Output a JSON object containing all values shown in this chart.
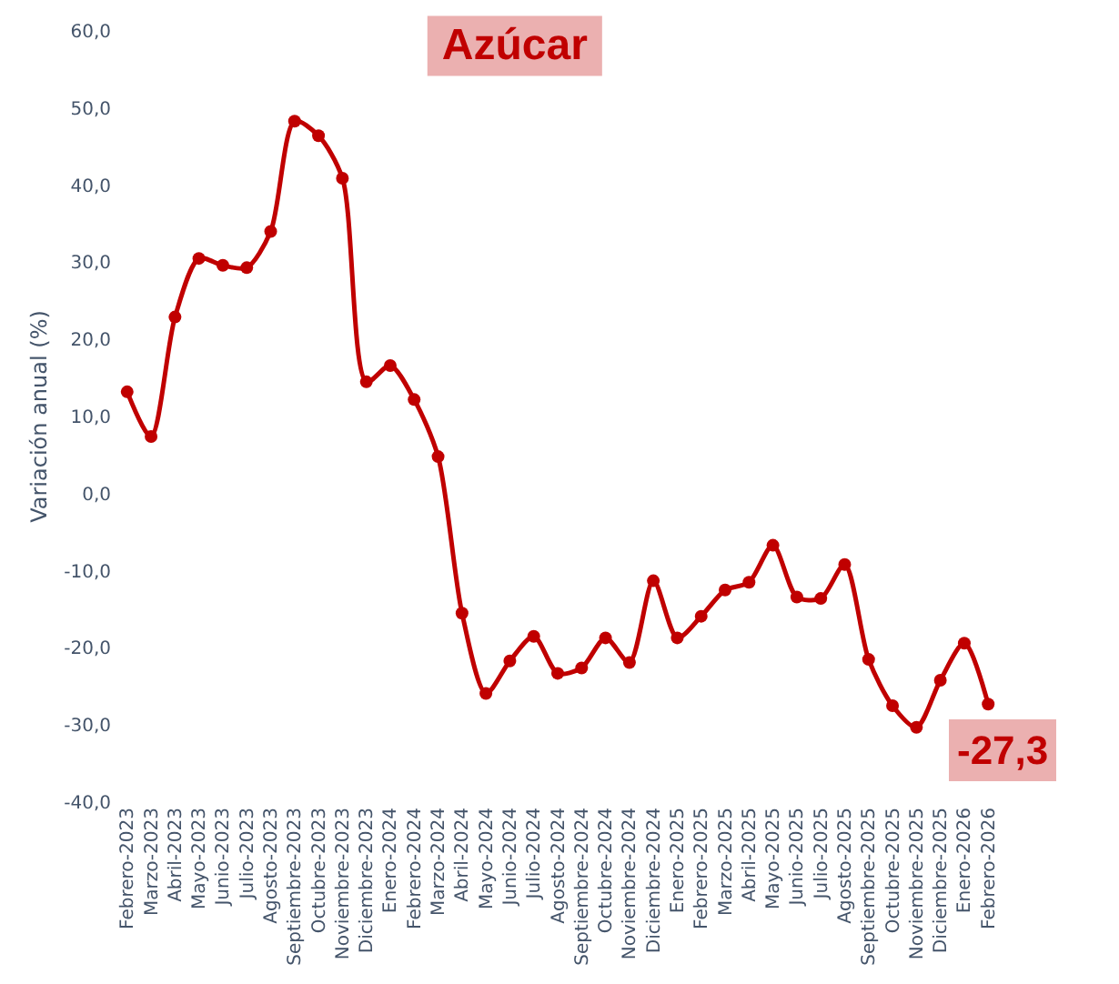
{
  "chart_data": {
    "type": "line",
    "title": "Azúcar",
    "ylabel": "Variación anual (%)",
    "categories": [
      "Febrero-2023",
      "Marzo-2023",
      "Abril-2023",
      "Mayo-2023",
      "Junio-2023",
      "Julio-2023",
      "Agosto-2023",
      "Septiembre-2023",
      "Octubre-2023",
      "Noviembre-2023",
      "Diciembre-2023",
      "Enero-2024",
      "Febrero-2024",
      "Marzo-2024",
      "Abril-2024",
      "Mayo-2024",
      "Junio-2024",
      "Julio-2024",
      "Agosto-2024",
      "Septiembre-2024",
      "Octubre-2024",
      "Noviembre-2024",
      "Diciembre-2024",
      "Enero-2025",
      "Febrero-2025",
      "Marzo-2025",
      "Abril-2025",
      "Mayo-2025",
      "Junio-2025",
      "Julio-2025",
      "Agosto-2025",
      "Septiembre-2025",
      "Octubre-2025",
      "Noviembre-2025",
      "Diciembre-2025",
      "Enero-2026",
      "Febrero-2026"
    ],
    "series": [
      {
        "color": "#c00000",
        "values": [
          13.2,
          7.4,
          22.9,
          30.5,
          29.6,
          29.3,
          34.0,
          48.3,
          46.4,
          40.9,
          14.5,
          16.6,
          12.2,
          4.8,
          -15.5,
          -25.9,
          -21.7,
          -18.5,
          -23.3,
          -22.6,
          -18.7,
          -21.9,
          -11.3,
          -18.7,
          -15.9,
          -12.5,
          -11.5,
          -6.7,
          -13.4,
          -13.6,
          -9.2,
          -21.5,
          -27.5,
          -30.3,
          -24.2,
          -19.4,
          -27.3
        ],
        "value_labels": [
          null,
          null,
          null,
          null,
          null,
          null,
          null,
          null,
          null,
          null,
          null,
          null,
          null,
          null,
          null,
          null,
          null,
          null,
          null,
          null,
          null,
          null,
          null,
          null,
          null,
          null,
          null,
          null,
          null,
          null,
          null,
          null,
          null,
          null,
          null,
          null,
          "-27,3"
        ]
      }
    ],
    "ylim": [
      -40,
      60
    ],
    "yticks": [
      {
        "value": -40,
        "label": "-40,0"
      },
      {
        "value": -30,
        "label": "-30,0"
      },
      {
        "value": -20,
        "label": "-20,0"
      },
      {
        "value": -10,
        "label": "-10,0"
      },
      {
        "value": 0,
        "label": "0,0"
      },
      {
        "value": 10,
        "label": "10,0"
      },
      {
        "value": 20,
        "label": "20,0"
      },
      {
        "value": 30,
        "label": "30,0"
      },
      {
        "value": 40,
        "label": "40,0"
      },
      {
        "value": 50,
        "label": "50,0"
      },
      {
        "value": 60,
        "label": "60,0"
      }
    ],
    "grid": false,
    "marker": "circle",
    "line_style": "solid"
  }
}
